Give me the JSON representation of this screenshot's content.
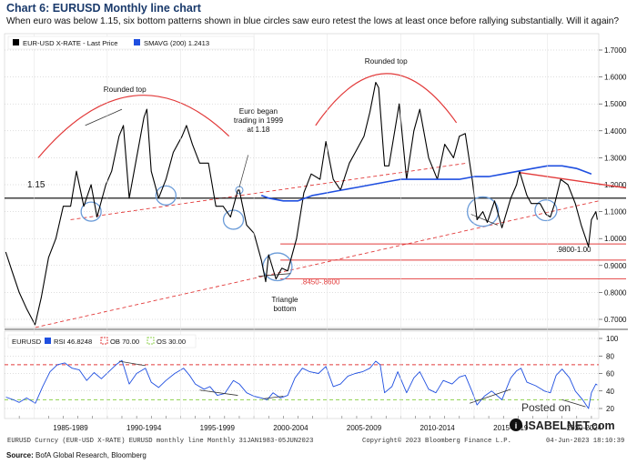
{
  "header": {
    "title": "Chart 6: EURUSD Monthly line chart",
    "subtitle": "When euro was below 1.15, six bottom patterns shown in blue circles saw euro retest the lows at least once before rallying substantially. Will it again?"
  },
  "footer": {
    "source_label": "Source:",
    "source_text": "BofA Global Research, Bloomberg"
  },
  "chart_data": [
    {
      "type": "line",
      "legend": [
        {
          "name": "EUR-USD X-RATE - Last Price",
          "color": "#000000"
        },
        {
          "name": "SMAVG (200) 1.2413",
          "color": "#1f4fe0"
        }
      ],
      "ylim": [
        0.65,
        1.75
      ],
      "yticks": [
        "1.7000",
        "1.6000",
        "1.5000",
        "1.4000",
        "1.3000",
        "1.2000",
        "1.1000",
        "1.0000",
        "0.9000",
        "0.8000",
        "0.7000"
      ],
      "xlim": [
        1983,
        2023.5
      ],
      "series": [
        {
          "name": "EUR-USD X-RATE - Last Price",
          "color": "#000000",
          "points": [
            [
              1983.08,
              0.95
            ],
            [
              1983.5,
              0.88
            ],
            [
              1984.0,
              0.8
            ],
            [
              1984.5,
              0.74
            ],
            [
              1985.08,
              0.68
            ],
            [
              1985.5,
              0.78
            ],
            [
              1986.0,
              0.93
            ],
            [
              1986.5,
              1.0
            ],
            [
              1987.0,
              1.12
            ],
            [
              1987.5,
              1.12
            ],
            [
              1987.9,
              1.25
            ],
            [
              1988.4,
              1.12
            ],
            [
              1988.9,
              1.2
            ],
            [
              1989.3,
              1.08
            ],
            [
              1989.9,
              1.2
            ],
            [
              1990.3,
              1.25
            ],
            [
              1990.8,
              1.38
            ],
            [
              1991.1,
              1.42
            ],
            [
              1991.5,
              1.15
            ],
            [
              1992.0,
              1.3
            ],
            [
              1992.5,
              1.45
            ],
            [
              1992.7,
              1.48
            ],
            [
              1993.0,
              1.25
            ],
            [
              1993.5,
              1.15
            ],
            [
              1994.0,
              1.22
            ],
            [
              1994.5,
              1.32
            ],
            [
              1995.1,
              1.38
            ],
            [
              1995.4,
              1.42
            ],
            [
              1995.8,
              1.35
            ],
            [
              1996.3,
              1.28
            ],
            [
              1996.9,
              1.28
            ],
            [
              1997.4,
              1.12
            ],
            [
              1997.9,
              1.12
            ],
            [
              1998.4,
              1.08
            ],
            [
              1998.9,
              1.18
            ],
            [
              1999.0,
              1.18
            ],
            [
              1999.5,
              1.05
            ],
            [
              2000.0,
              1.02
            ],
            [
              2000.5,
              0.92
            ],
            [
              2000.8,
              0.84
            ],
            [
              2001.0,
              0.94
            ],
            [
              2001.5,
              0.85
            ],
            [
              2001.9,
              0.89
            ],
            [
              2002.3,
              0.88
            ],
            [
              2002.9,
              1.0
            ],
            [
              2003.4,
              1.17
            ],
            [
              2003.9,
              1.24
            ],
            [
              2004.5,
              1.22
            ],
            [
              2004.9,
              1.36
            ],
            [
              2005.4,
              1.22
            ],
            [
              2005.9,
              1.18
            ],
            [
              2006.5,
              1.28
            ],
            [
              2006.9,
              1.32
            ],
            [
              2007.5,
              1.38
            ],
            [
              2007.9,
              1.47
            ],
            [
              2008.3,
              1.58
            ],
            [
              2008.5,
              1.56
            ],
            [
              2008.9,
              1.27
            ],
            [
              2009.2,
              1.27
            ],
            [
              2009.9,
              1.5
            ],
            [
              2010.4,
              1.22
            ],
            [
              2010.9,
              1.4
            ],
            [
              2011.3,
              1.48
            ],
            [
              2011.9,
              1.3
            ],
            [
              2012.5,
              1.22
            ],
            [
              2013.0,
              1.35
            ],
            [
              2013.6,
              1.3
            ],
            [
              2014.0,
              1.38
            ],
            [
              2014.4,
              1.39
            ],
            [
              2014.9,
              1.21
            ],
            [
              2015.2,
              1.07
            ],
            [
              2015.6,
              1.1
            ],
            [
              2015.9,
              1.06
            ],
            [
              2016.4,
              1.14
            ],
            [
              2016.9,
              1.04
            ],
            [
              2017.5,
              1.15
            ],
            [
              2017.9,
              1.2
            ],
            [
              2018.1,
              1.25
            ],
            [
              2018.6,
              1.16
            ],
            [
              2018.9,
              1.13
            ],
            [
              2019.5,
              1.13
            ],
            [
              2019.9,
              1.09
            ],
            [
              2020.2,
              1.08
            ],
            [
              2020.5,
              1.13
            ],
            [
              2020.9,
              1.22
            ],
            [
              2021.4,
              1.2
            ],
            [
              2021.9,
              1.13
            ],
            [
              2022.3,
              1.05
            ],
            [
              2022.8,
              0.97
            ],
            [
              2023.0,
              1.07
            ],
            [
              2023.3,
              1.1
            ],
            [
              2023.4,
              1.07
            ]
          ]
        },
        {
          "name": "SMAVG (200) 1.2413",
          "color": "#1f4fe0",
          "points": [
            [
              2000.5,
              1.16
            ],
            [
              2001.0,
              1.15
            ],
            [
              2002.0,
              1.14
            ],
            [
              2003.0,
              1.14
            ],
            [
              2004.0,
              1.16
            ],
            [
              2005.0,
              1.17
            ],
            [
              2006.0,
              1.18
            ],
            [
              2007.0,
              1.19
            ],
            [
              2008.0,
              1.2
            ],
            [
              2009.0,
              1.21
            ],
            [
              2010.0,
              1.22
            ],
            [
              2011.0,
              1.22
            ],
            [
              2012.0,
              1.22
            ],
            [
              2013.0,
              1.22
            ],
            [
              2014.0,
              1.22
            ],
            [
              2015.0,
              1.23
            ],
            [
              2016.0,
              1.23
            ],
            [
              2017.0,
              1.24
            ],
            [
              2018.0,
              1.25
            ],
            [
              2019.0,
              1.26
            ],
            [
              2020.0,
              1.27
            ],
            [
              2021.0,
              1.27
            ],
            [
              2022.0,
              1.26
            ],
            [
              2023.0,
              1.24
            ]
          ]
        }
      ],
      "reference_lines": [
        {
          "value": 1.15,
          "label": "1.15",
          "color": "#000000"
        },
        {
          "value": 0.98,
          "color": "#e23a3a"
        },
        {
          "value": 0.92,
          "color": "#e23a3a"
        },
        {
          "value": 0.85,
          "color": "#e23a3a"
        }
      ],
      "annotations": [
        "Rounded top",
        "Rounded top",
        "Euro began trading in 1999 at 1.18",
        "Triangle bottom",
        ".8450-.8600",
        ".9800-1.00"
      ]
    },
    {
      "type": "line",
      "legend": [
        {
          "name": "EURUSD",
          "color": ""
        },
        {
          "name": "RSI 46.8248",
          "color": "#1f4fe0"
        },
        {
          "name": "OB 70.00",
          "color": "#e23a3a"
        },
        {
          "name": "OS 30.00",
          "color": "#8fd14f"
        }
      ],
      "ylim": [
        10,
        100
      ],
      "yticks": [
        "100",
        "80",
        "60",
        "40",
        "20"
      ],
      "categories": [
        "1985-1989",
        "1990-1994",
        "1995-1999",
        "2000-2004",
        "2005-2009",
        "2010-2014",
        "2015-2019",
        "2020-2024"
      ],
      "series": [
        {
          "name": "RSI",
          "color": "#1f4fe0",
          "points": [
            [
              1983.1,
              33
            ],
            [
              1983.6,
              30
            ],
            [
              1984.0,
              27
            ],
            [
              1984.5,
              32
            ],
            [
              1985.1,
              26
            ],
            [
              1985.6,
              45
            ],
            [
              1986.1,
              62
            ],
            [
              1986.6,
              70
            ],
            [
              1987.1,
              72
            ],
            [
              1987.6,
              66
            ],
            [
              1988.1,
              64
            ],
            [
              1988.6,
              52
            ],
            [
              1989.1,
              61
            ],
            [
              1989.6,
              54
            ],
            [
              1990.1,
              62
            ],
            [
              1990.6,
              70
            ],
            [
              1991.0,
              75
            ],
            [
              1991.5,
              48
            ],
            [
              1992.0,
              60
            ],
            [
              1992.6,
              66
            ],
            [
              1993.0,
              50
            ],
            [
              1993.5,
              44
            ],
            [
              1994.0,
              52
            ],
            [
              1994.6,
              60
            ],
            [
              1995.2,
              66
            ],
            [
              1995.6,
              58
            ],
            [
              1996.0,
              48
            ],
            [
              1996.6,
              42
            ],
            [
              1997.0,
              45
            ],
            [
              1997.5,
              35
            ],
            [
              1998.0,
              37
            ],
            [
              1998.6,
              52
            ],
            [
              1999.0,
              48
            ],
            [
              1999.5,
              38
            ],
            [
              2000.0,
              34
            ],
            [
              2000.5,
              32
            ],
            [
              2000.9,
              30
            ],
            [
              2001.3,
              38
            ],
            [
              2001.8,
              32
            ],
            [
              2002.3,
              35
            ],
            [
              2002.8,
              55
            ],
            [
              2003.3,
              66
            ],
            [
              2003.8,
              62
            ],
            [
              2004.4,
              60
            ],
            [
              2004.9,
              68
            ],
            [
              2005.4,
              45
            ],
            [
              2005.9,
              48
            ],
            [
              2006.4,
              57
            ],
            [
              2006.9,
              60
            ],
            [
              2007.4,
              62
            ],
            [
              2007.9,
              66
            ],
            [
              2008.3,
              74
            ],
            [
              2008.6,
              70
            ],
            [
              2008.9,
              38
            ],
            [
              2009.4,
              45
            ],
            [
              2009.8,
              62
            ],
            [
              2010.4,
              38
            ],
            [
              2010.9,
              55
            ],
            [
              2011.3,
              62
            ],
            [
              2011.9,
              42
            ],
            [
              2012.4,
              38
            ],
            [
              2012.9,
              52
            ],
            [
              2013.5,
              48
            ],
            [
              2014.0,
              56
            ],
            [
              2014.4,
              58
            ],
            [
              2014.9,
              38
            ],
            [
              2015.2,
              24
            ],
            [
              2015.7,
              34
            ],
            [
              2016.2,
              40
            ],
            [
              2016.9,
              30
            ],
            [
              2017.5,
              55
            ],
            [
              2017.9,
              63
            ],
            [
              2018.2,
              66
            ],
            [
              2018.6,
              50
            ],
            [
              2019.2,
              46
            ],
            [
              2019.8,
              40
            ],
            [
              2020.2,
              38
            ],
            [
              2020.6,
              58
            ],
            [
              2021.0,
              65
            ],
            [
              2021.5,
              55
            ],
            [
              2021.9,
              40
            ],
            [
              2022.4,
              30
            ],
            [
              2022.8,
              20
            ],
            [
              2023.0,
              38
            ],
            [
              2023.3,
              48
            ],
            [
              2023.4,
              46.8
            ]
          ]
        }
      ],
      "reference_lines": [
        {
          "value": 70,
          "label": "OB 70.00",
          "color": "#e23a3a"
        },
        {
          "value": 30,
          "label": "OS 30.00",
          "color": "#8fd14f"
        }
      ]
    }
  ],
  "bottom_bar": {
    "description": "EURUSD Curncy (EUR-USD X-RATE) EURUSD monthly line  Monthly 31JAN1983-05JUN2023",
    "copyright": "Copyright© 2023 Bloomberg Finance L.P.",
    "timestamp": "04-Jun-2023 18:10:39"
  },
  "watermark": {
    "posted_on": "Posted on",
    "brand": "ISABELNET.com"
  },
  "colors": {
    "price": "#000000",
    "sma": "#1f4fe0",
    "red": "#e23a3a",
    "circle": "#6a9bd8",
    "os_green": "#8fd14f"
  }
}
